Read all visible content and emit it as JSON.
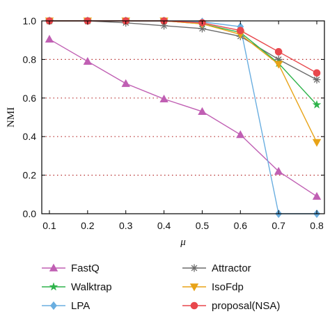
{
  "chart_data": {
    "type": "line",
    "xlabel": "μ",
    "ylabel": "NMI",
    "x": [
      0.1,
      0.2,
      0.3,
      0.4,
      0.5,
      0.6,
      0.7,
      0.8
    ],
    "xticks": [
      "0.1",
      "0.2",
      "0.3",
      "0.4",
      "0.5",
      "0.6",
      "0.7",
      "0.8"
    ],
    "yticks": [
      "0.0",
      "0.2",
      "0.4",
      "0.6",
      "0.8",
      "1.0"
    ],
    "xlim": [
      0.08,
      0.82
    ],
    "ylim": [
      0.0,
      1.0
    ],
    "grid": "horizontal dotted",
    "legend_placement": "bottom",
    "series": [
      {
        "name": "FastQ",
        "color": "#c05fb3",
        "marker": "triangle-up",
        "values": [
          0.905,
          0.79,
          0.675,
          0.595,
          0.53,
          0.41,
          0.22,
          0.09
        ]
      },
      {
        "name": "Attractor",
        "color": "#6b6b6b",
        "marker": "asterisk",
        "values": [
          1.0,
          1.0,
          0.99,
          0.975,
          0.96,
          0.92,
          0.8,
          0.695
        ]
      },
      {
        "name": "Walktrap",
        "color": "#2db34a",
        "marker": "star",
        "values": [
          1.0,
          1.0,
          1.0,
          1.0,
          0.985,
          0.94,
          0.78,
          0.565
        ]
      },
      {
        "name": "IsoFdp",
        "color": "#e8a317",
        "marker": "triangle-down",
        "values": [
          1.0,
          1.0,
          1.0,
          1.0,
          0.985,
          0.93,
          0.775,
          0.37
        ]
      },
      {
        "name": "LPA",
        "color": "#6aaee0",
        "marker": "diamond",
        "values": [
          1.0,
          1.0,
          1.0,
          1.0,
          0.995,
          0.97,
          0.0,
          0.0
        ]
      },
      {
        "name": "proposal(NSA)",
        "color": "#e8474c",
        "marker": "circle",
        "values": [
          1.0,
          1.0,
          1.0,
          1.0,
          0.99,
          0.95,
          0.84,
          0.73
        ]
      }
    ],
    "legend_order": [
      "FastQ",
      "Attractor",
      "Walktrap",
      "IsoFdp",
      "LPA",
      "proposal(NSA)"
    ]
  }
}
